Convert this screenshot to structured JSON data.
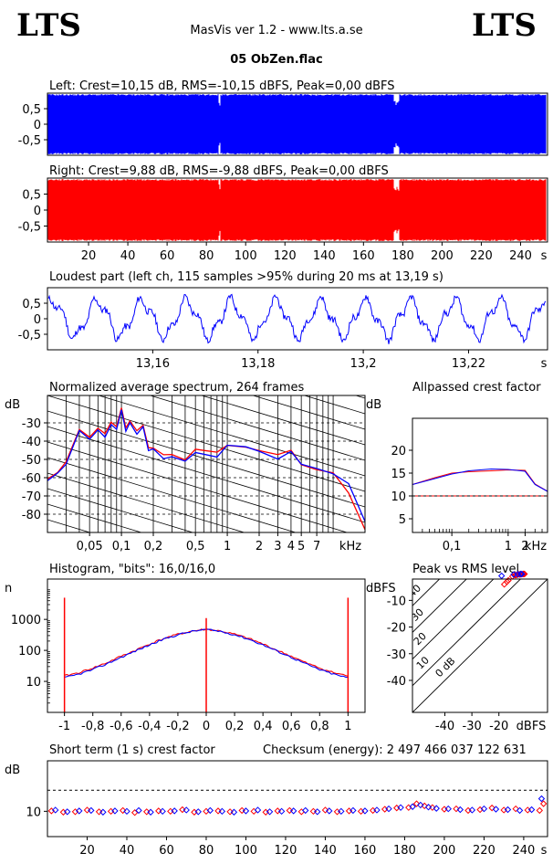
{
  "header": {
    "logo_left": "LTS",
    "logo_right": "LTS",
    "app": "MasVis ver 1.2 - www.lts.a.se",
    "file": "05 ObZen.flac"
  },
  "chart_data": [
    {
      "id": "left_waveform",
      "type": "area",
      "title": "Left: Crest=10,15 dB, RMS=-10,15 dBFS, Peak=0,00 dBFS",
      "color": "#0000ff",
      "ylim": [
        -1,
        1
      ],
      "yticks": [
        "0,5",
        "0",
        "-0,5"
      ],
      "ytick_values": [
        0.5,
        0,
        -0.5
      ],
      "xlim": [
        0,
        250
      ]
    },
    {
      "id": "right_waveform",
      "type": "area",
      "title": "Right: Crest=9,88 dB, RMS=-9,88 dBFS, Peak=0,00 dBFS",
      "color": "#ff0000",
      "ylim": [
        -1,
        1
      ],
      "yticks": [
        "0,5",
        "0",
        "-0,5"
      ],
      "ytick_values": [
        0.5,
        0,
        -0.5
      ],
      "xlim": [
        0,
        250
      ],
      "xticks": [
        "20",
        "40",
        "60",
        "80",
        "100",
        "120",
        "140",
        "160",
        "180",
        "200",
        "220",
        "240"
      ],
      "xtick_values": [
        20,
        40,
        60,
        80,
        100,
        120,
        140,
        160,
        180,
        200,
        220,
        240
      ],
      "xunit": "s"
    },
    {
      "id": "loudest_part",
      "type": "line",
      "title": "Loudest part (left  ch, 115 samples >95% during 20 ms at 13,19 s)",
      "color": "#0000ff",
      "ylim": [
        -1,
        1
      ],
      "yticks": [
        "0,5",
        "0",
        "-0,5"
      ],
      "ytick_values": [
        0.5,
        0,
        -0.5
      ],
      "xlim": [
        13.14,
        13.235
      ],
      "xticks": [
        "13,16",
        "13,18",
        "13,2",
        "13,22"
      ],
      "xtick_values": [
        13.16,
        13.18,
        13.2,
        13.22
      ],
      "xunit": "s"
    },
    {
      "id": "spectrum",
      "type": "line",
      "title": "Normalized average spectrum, 264 frames",
      "ylabel": "dB",
      "xunit": "kHz",
      "ylim": [
        -90,
        -15
      ],
      "yticks": [
        "-30",
        "-40",
        "-50",
        "-60",
        "-70",
        "-80"
      ],
      "ytick_values": [
        -30,
        -40,
        -50,
        -60,
        -70,
        -80
      ],
      "xlim": [
        0.02,
        20
      ],
      "xticks": [
        "0,05",
        "0,1",
        "0,2",
        "0,5",
        "1",
        "2",
        "3",
        "4",
        "5",
        "7"
      ],
      "xtick_values": [
        0.05,
        0.1,
        0.2,
        0.5,
        1,
        2,
        3,
        4,
        5,
        7
      ],
      "x": [
        0.02,
        0.025,
        0.03,
        0.04,
        0.05,
        0.06,
        0.07,
        0.08,
        0.09,
        0.1,
        0.11,
        0.12,
        0.14,
        0.16,
        0.18,
        0.2,
        0.25,
        0.3,
        0.4,
        0.5,
        0.6,
        0.8,
        1,
        1.5,
        2,
        3,
        4,
        5,
        7,
        10,
        14,
        20
      ],
      "series": [
        {
          "color": "#ff0000",
          "values": [
            -60,
            -58,
            -52,
            -34,
            -38,
            -33,
            -36,
            -30,
            -32,
            -21,
            -33,
            -28,
            -35,
            -32,
            -44,
            -43,
            -48,
            -48,
            -50,
            -45,
            -46,
            -47,
            -42,
            -43,
            -45,
            -48,
            -45,
            -52,
            -56,
            -58,
            -68,
            -88
          ]
        },
        {
          "color": "#0000ff",
          "values": [
            -61,
            -58,
            -53,
            -35,
            -39,
            -34,
            -37,
            -31,
            -33,
            -22,
            -34,
            -29,
            -36,
            -33,
            -45,
            -44,
            -49,
            -49,
            -51,
            -46,
            -47,
            -48,
            -43,
            -44,
            -46,
            -49,
            -46,
            -53,
            -55,
            -57,
            -63,
            -84
          ]
        }
      ]
    },
    {
      "id": "allpassed_crest",
      "type": "line",
      "title": "Allpassed crest factor",
      "ylabel": "dB",
      "xunit": "kHz",
      "ylim": [
        2,
        27
      ],
      "yticks": [
        "20",
        "15",
        "10",
        "5"
      ],
      "ytick_values": [
        20,
        15,
        10,
        5
      ],
      "xlim": [
        0.02,
        5
      ],
      "xticks": [
        "0,1",
        "1",
        "2"
      ],
      "xtick_values": [
        0.1,
        1,
        2
      ],
      "reference": 10,
      "x": [
        0.02,
        0.05,
        0.1,
        0.2,
        0.5,
        1,
        2,
        3,
        5
      ],
      "series": [
        {
          "color": "#ff0000",
          "values": [
            12.5,
            14,
            15,
            15.3,
            15.5,
            15.7,
            15.6,
            12.6,
            11
          ]
        },
        {
          "color": "#0000ff",
          "values": [
            12.5,
            13.8,
            14.8,
            15.5,
            15.9,
            15.8,
            15.4,
            12.5,
            11
          ]
        }
      ]
    },
    {
      "id": "histogram",
      "type": "line",
      "title": "Histogram, \"bits\": 16,0/16,0",
      "ylabel": "n",
      "yscale": "log",
      "ylim": [
        1,
        20000
      ],
      "yticks": [
        "1000",
        "100",
        "10"
      ],
      "ytick_values": [
        1000,
        100,
        10
      ],
      "xlim": [
        -1.12,
        1.12
      ],
      "xticks": [
        "-1",
        "-0,8",
        "-0,6",
        "-0,4",
        "-0,2",
        "0",
        "0,2",
        "0,4",
        "0,6",
        "0,8",
        "1"
      ],
      "xtick_values": [
        -1,
        -0.8,
        -0.6,
        -0.4,
        -0.2,
        0,
        0.2,
        0.4,
        0.6,
        0.8,
        1
      ],
      "x": [
        -1,
        -0.9,
        -0.8,
        -0.7,
        -0.6,
        -0.5,
        -0.4,
        -0.3,
        -0.2,
        -0.1,
        0,
        0.1,
        0.2,
        0.3,
        0.4,
        0.5,
        0.6,
        0.7,
        0.8,
        0.9,
        1
      ],
      "series": [
        {
          "color": "#ff0000",
          "values": [
            15,
            19,
            27,
            40,
            65,
            100,
            160,
            240,
            330,
            420,
            480,
            420,
            330,
            240,
            160,
            100,
            65,
            40,
            27,
            19,
            15
          ]
        },
        {
          "color": "#0000ff",
          "values": [
            13,
            17,
            24,
            37,
            60,
            95,
            150,
            230,
            320,
            410,
            470,
            410,
            320,
            230,
            150,
            95,
            60,
            37,
            24,
            17,
            13
          ]
        }
      ],
      "spikes": [
        {
          "x": -1,
          "value": 5000
        },
        {
          "x": 0,
          "value": 1100
        },
        {
          "x": 1,
          "value": 5000
        }
      ]
    },
    {
      "id": "peak_vs_rms",
      "type": "scatter",
      "title": "Peak vs RMS level",
      "ylabel": "dBFS",
      "xunit": "dBFS",
      "xlim": [
        -52,
        -2
      ],
      "ylim": [
        -52,
        -2
      ],
      "xticks": [
        "-40",
        "-30",
        "-20"
      ],
      "xtick_values": [
        -40,
        -30,
        -20
      ],
      "yticks": [
        "-10",
        "-20",
        "-30",
        "-40"
      ],
      "ytick_values": [
        -10,
        -20,
        -30,
        -40
      ],
      "crest_lines": [
        "40",
        "30",
        "20",
        "10",
        "0 dB"
      ],
      "crest_line_values": [
        40,
        30,
        20,
        10,
        0
      ],
      "series": [
        {
          "color": "#ff0000",
          "x": [
            -11,
            -12,
            -10.5,
            -13,
            -14,
            -12.5,
            -15,
            -11.5,
            -17,
            -18,
            -16.5,
            -13.5,
            -10.8,
            -12.2
          ],
          "y": [
            -0.1,
            -0.2,
            -0.1,
            -0.3,
            -0.5,
            -0.2,
            -1,
            -0.2,
            -3,
            -4,
            -2.5,
            -0.5,
            -0.1,
            -0.3
          ]
        },
        {
          "color": "#0000ff",
          "x": [
            -12,
            -13,
            -19,
            -11.5,
            -14.5
          ],
          "y": [
            -0.1,
            -0.2,
            -0.8,
            -0.1,
            -0.3
          ]
        }
      ]
    },
    {
      "id": "short_term_crest",
      "type": "scatter",
      "title": "Short term (1 s) crest factor",
      "annotation": "Checksum (energy):  2 497 466 037 122 631",
      "ylabel": "dB",
      "ylim": [
        4,
        22
      ],
      "yticks": [
        "10"
      ],
      "ytick_values": [
        10
      ],
      "reference": 15,
      "xlim": [
        0,
        252
      ],
      "xticks": [
        "20",
        "40",
        "60",
        "80",
        "100",
        "120",
        "140",
        "160",
        "180",
        "200",
        "220",
        "240"
      ],
      "xtick_values": [
        20,
        40,
        60,
        80,
        100,
        120,
        140,
        160,
        180,
        200,
        220,
        240
      ],
      "xunit": "s",
      "series": [
        {
          "color": "#ff0000",
          "x": [
            2,
            8,
            14,
            20,
            26,
            32,
            38,
            44,
            50,
            56,
            62,
            68,
            74,
            80,
            86,
            92,
            98,
            104,
            110,
            116,
            122,
            128,
            134,
            140,
            146,
            152,
            158,
            164,
            170,
            176,
            182,
            186,
            190,
            194,
            200,
            206,
            212,
            218,
            224,
            230,
            236,
            242,
            248,
            250
          ],
          "y": [
            10.1,
            9.8,
            9.9,
            10.3,
            9.9,
            10.0,
            10.2,
            9.7,
            9.9,
            10.1,
            10.0,
            10.4,
            9.8,
            10.0,
            10.1,
            9.9,
            10.2,
            10.0,
            9.8,
            10.1,
            10.2,
            9.9,
            10.0,
            10.3,
            9.9,
            10.1,
            10.0,
            10.2,
            10.5,
            10.8,
            10.9,
            11.8,
            11.3,
            10.9,
            10.5,
            10.6,
            10.2,
            10.4,
            10.8,
            10.3,
            10.6,
            10.3,
            10.2,
            11.8
          ]
        },
        {
          "color": "#0000ff",
          "x": [
            4,
            10,
            16,
            22,
            28,
            34,
            40,
            46,
            52,
            58,
            64,
            70,
            76,
            82,
            88,
            94,
            100,
            106,
            112,
            118,
            124,
            130,
            136,
            142,
            148,
            154,
            160,
            166,
            172,
            178,
            184,
            188,
            192,
            196,
            202,
            208,
            214,
            220,
            226,
            232,
            238,
            244,
            249
          ],
          "y": [
            10.3,
            9.9,
            10.1,
            10.2,
            9.8,
            10.1,
            10.0,
            10.2,
            9.8,
            10.0,
            10.1,
            10.3,
            9.9,
            10.2,
            10.0,
            9.8,
            10.1,
            10.3,
            9.9,
            10.0,
            10.1,
            10.2,
            9.9,
            10.1,
            10.0,
            10.2,
            10.1,
            10.3,
            10.6,
            10.9,
            11.1,
            11.5,
            11.0,
            10.7,
            10.6,
            10.4,
            10.3,
            10.6,
            10.5,
            10.4,
            10.2,
            10.4,
            13.0
          ]
        }
      ]
    }
  ]
}
